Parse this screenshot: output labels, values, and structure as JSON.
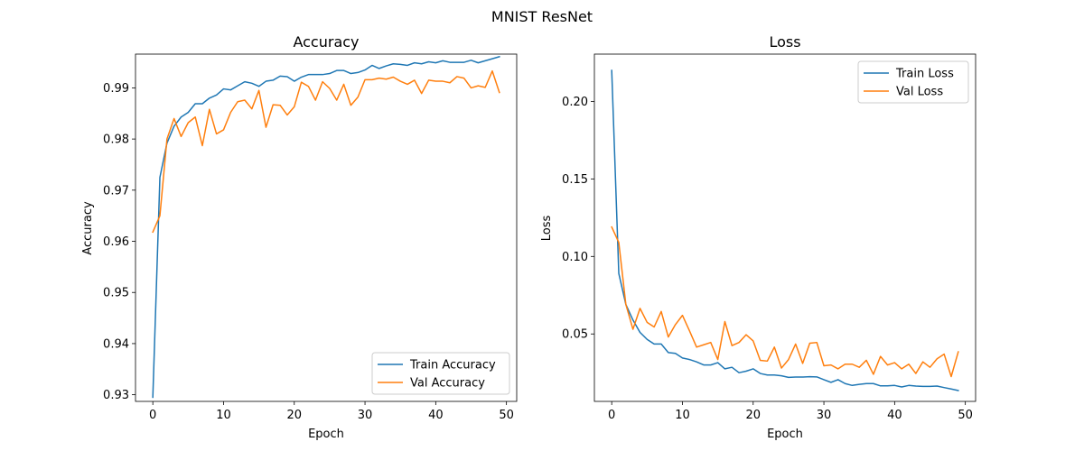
{
  "figure_title": "MNIST ResNet",
  "colors": {
    "train": "#1f77b4",
    "val": "#ff7f0e"
  },
  "chart_data": [
    {
      "type": "line",
      "title": "Accuracy",
      "xlabel": "Epoch",
      "ylabel": "Accuracy",
      "xlim": [
        -2.45,
        51.45
      ],
      "ylim": [
        0.9287,
        0.9966
      ],
      "xticks": [
        0,
        10,
        20,
        30,
        40,
        50
      ],
      "yticks": [
        0.93,
        0.94,
        0.95,
        0.96,
        0.97,
        0.98,
        0.99
      ],
      "ytick_labels": [
        "0.93",
        "0.94",
        "0.95",
        "0.96",
        "0.97",
        "0.98",
        "0.99"
      ],
      "legend_position": "lower right",
      "x": [
        0,
        1,
        2,
        3,
        4,
        5,
        6,
        7,
        8,
        9,
        10,
        11,
        12,
        13,
        14,
        15,
        16,
        17,
        18,
        19,
        20,
        21,
        22,
        23,
        24,
        25,
        26,
        27,
        28,
        29,
        30,
        31,
        32,
        33,
        34,
        35,
        36,
        37,
        38,
        39,
        40,
        41,
        42,
        43,
        44,
        45,
        46,
        47,
        48,
        49
      ],
      "series": [
        {
          "name": "Train Accuracy",
          "color": "#1f77b4",
          "values": [
            0.9295,
            0.9725,
            0.9792,
            0.9825,
            0.9843,
            0.9852,
            0.9869,
            0.9869,
            0.988,
            0.9886,
            0.9898,
            0.9896,
            0.9904,
            0.9912,
            0.9909,
            0.9903,
            0.9913,
            0.9915,
            0.9923,
            0.9922,
            0.9913,
            0.9921,
            0.9926,
            0.9926,
            0.9926,
            0.9928,
            0.9934,
            0.9934,
            0.9928,
            0.993,
            0.9935,
            0.9944,
            0.9938,
            0.9943,
            0.9947,
            0.9946,
            0.9944,
            0.9949,
            0.9947,
            0.9951,
            0.9949,
            0.9953,
            0.995,
            0.995,
            0.995,
            0.9954,
            0.9949,
            0.9953,
            0.9957,
            0.9961
          ]
        },
        {
          "name": "Val Accuracy",
          "color": "#ff7f0e",
          "values": [
            0.9618,
            0.965,
            0.98,
            0.984,
            0.9805,
            0.9832,
            0.9843,
            0.9787,
            0.9858,
            0.981,
            0.9818,
            0.9852,
            0.9873,
            0.9876,
            0.9859,
            0.9895,
            0.9823,
            0.9867,
            0.9866,
            0.9847,
            0.9863,
            0.9911,
            0.9903,
            0.9876,
            0.9912,
            0.9899,
            0.9876,
            0.9907,
            0.9866,
            0.9882,
            0.9916,
            0.9916,
            0.9919,
            0.9917,
            0.9921,
            0.9913,
            0.9907,
            0.9915,
            0.9889,
            0.9915,
            0.9913,
            0.9913,
            0.991,
            0.9922,
            0.9919,
            0.99,
            0.9904,
            0.9901,
            0.9933,
            0.9891
          ]
        }
      ]
    },
    {
      "type": "line",
      "title": "Loss",
      "xlabel": "Epoch",
      "ylabel": "Loss",
      "xlim": [
        -2.45,
        51.45
      ],
      "ylim": [
        0.0065,
        0.2305
      ],
      "xticks": [
        0,
        10,
        20,
        30,
        40,
        50
      ],
      "yticks": [
        0.05,
        0.1,
        0.15,
        0.2
      ],
      "ytick_labels": [
        "0.05",
        "0.10",
        "0.15",
        "0.20"
      ],
      "legend_position": "upper right",
      "x": [
        0,
        1,
        2,
        3,
        4,
        5,
        6,
        7,
        8,
        9,
        10,
        11,
        12,
        13,
        14,
        15,
        16,
        17,
        18,
        19,
        20,
        21,
        22,
        23,
        24,
        25,
        26,
        27,
        28,
        29,
        30,
        31,
        32,
        33,
        34,
        35,
        36,
        37,
        38,
        39,
        40,
        41,
        42,
        43,
        44,
        45,
        46,
        47,
        48,
        49
      ],
      "series": [
        {
          "name": "Train Loss",
          "color": "#1f77b4",
          "values": [
            0.22,
            0.089,
            0.069,
            0.059,
            0.051,
            0.0465,
            0.0435,
            0.0435,
            0.038,
            0.0375,
            0.0345,
            0.0335,
            0.032,
            0.03,
            0.03,
            0.0315,
            0.0275,
            0.0285,
            0.025,
            0.026,
            0.0275,
            0.0245,
            0.0235,
            0.0235,
            0.023,
            0.022,
            0.0222,
            0.0222,
            0.0224,
            0.0223,
            0.0205,
            0.0188,
            0.0205,
            0.018,
            0.0168,
            0.0175,
            0.018,
            0.018,
            0.0165,
            0.0165,
            0.0168,
            0.0158,
            0.0168,
            0.0164,
            0.0162,
            0.0162,
            0.0164,
            0.0154,
            0.0145,
            0.0135
          ]
        },
        {
          "name": "Val Loss",
          "color": "#ff7f0e",
          "values": [
            0.119,
            0.109,
            0.069,
            0.053,
            0.0665,
            0.0575,
            0.0545,
            0.0645,
            0.048,
            0.056,
            0.062,
            0.052,
            0.0415,
            0.043,
            0.0445,
            0.0335,
            0.058,
            0.0425,
            0.0445,
            0.0495,
            0.0455,
            0.033,
            0.0325,
            0.0415,
            0.028,
            0.0335,
            0.0435,
            0.031,
            0.044,
            0.0445,
            0.0295,
            0.03,
            0.0275,
            0.0305,
            0.0305,
            0.0285,
            0.033,
            0.024,
            0.0355,
            0.03,
            0.0315,
            0.0275,
            0.0305,
            0.0245,
            0.032,
            0.0285,
            0.034,
            0.037,
            0.0225,
            0.0385
          ]
        }
      ]
    }
  ]
}
